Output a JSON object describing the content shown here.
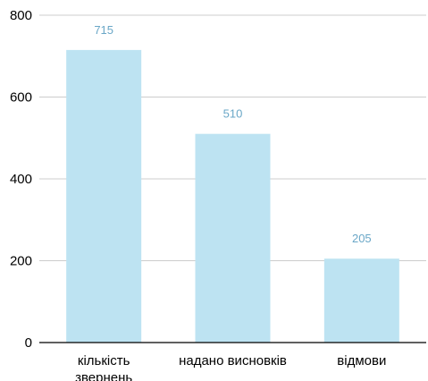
{
  "chart_data": {
    "type": "bar",
    "categories": [
      [
        "кількість",
        "звернень"
      ],
      [
        "надано висновків"
      ],
      [
        "відмови"
      ]
    ],
    "values": [
      715,
      510,
      205
    ],
    "data_labels": [
      "715",
      "510",
      "205"
    ],
    "y_ticks": [
      "0",
      "200",
      "400",
      "600",
      "800"
    ],
    "ylim": [
      0,
      800
    ],
    "grid": true,
    "colors": {
      "bar": "#bde3f2",
      "data_label": "#6aa7c7",
      "grid": "#cccccc",
      "axis": "#000000"
    }
  }
}
